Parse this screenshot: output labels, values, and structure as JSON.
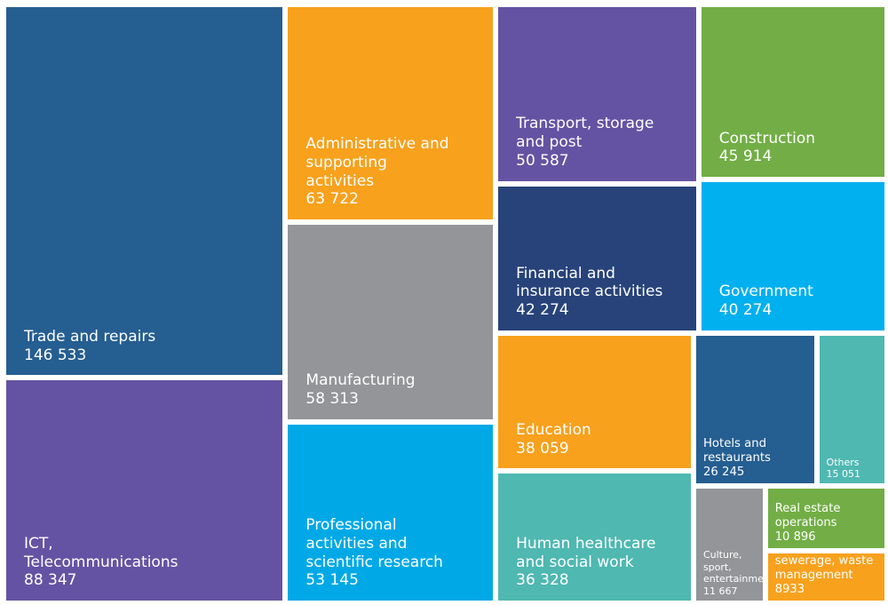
{
  "chart_data": {
    "type": "treemap",
    "categories": [
      "Trade and repairs",
      "ICT, Telecommunications",
      "Administrative and supporting activities",
      "Manufacturing",
      "Professional activities and scientific research",
      "Transport, storage and post",
      "Construction",
      "Financial and insurance activities",
      "Government",
      "Education",
      "Hotels and restaurants",
      "Others",
      "Human healthcare and social work",
      "Culture, sport, entertainment",
      "Real estate operations",
      "Water supply and sewerage, waste management"
    ],
    "values": [
      146533,
      88347,
      63722,
      58313,
      53145,
      50587,
      45914,
      42274,
      40274,
      38059,
      26245,
      15051,
      36328,
      11667,
      10896,
      8933
    ],
    "value_labels": [
      "146 533",
      "88 347",
      "63 722",
      "58 313",
      "53 145",
      "50 587",
      "45 914",
      "42 274",
      "40 274",
      "38 059",
      "26 245",
      "15 051",
      "36 328",
      "11 667",
      "10 896",
      "8933"
    ],
    "colors": [
      "#255e91",
      "#6453a3",
      "#f7a11d",
      "#939598",
      "#00a9e6",
      "#6453a3",
      "#72ae45",
      "#27437a",
      "#00b0ef",
      "#f7a11d",
      "#255e91",
      "#4fb8b1",
      "#4fb8b1",
      "#939598",
      "#72ae45",
      "#f7a11d"
    ]
  }
}
